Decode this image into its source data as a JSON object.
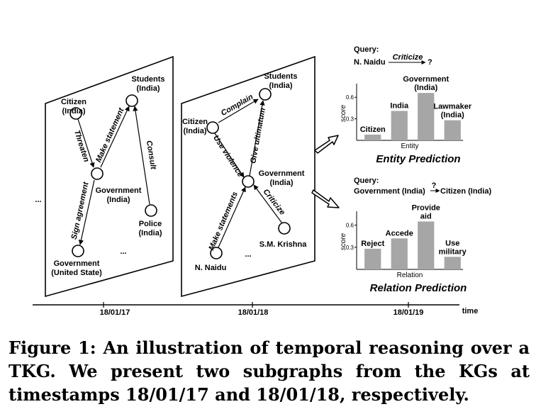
{
  "figure": {
    "left_graph": {
      "nodes": {
        "students": "Students\n(India)",
        "citizen": "Citizen\n(India)",
        "government": "Government\n(India)",
        "police": "Police\n(India)",
        "us_government": "Government\n(United State)"
      },
      "edges": {
        "threaten": "Threaten",
        "make_statement": "Make statement",
        "consult": "Consult",
        "sign_agreement": "Sign agreement"
      }
    },
    "right_graph": {
      "nodes": {
        "students": "Students\n(India)",
        "citizen": "Citizen\n(India)",
        "government": "Government\n(India)",
        "sm_krishna": "S.M. Krishna",
        "n_naidu": "N. Naidu"
      },
      "edges": {
        "complain": "Complain",
        "use_violence": "Use violence",
        "give_ultimatum": "Give ultimatum",
        "criticize": "Criticize",
        "make_statements": "Make statements"
      }
    },
    "ellipsis": "...",
    "timeline": {
      "dates": [
        "18/01/17",
        "18/01/18",
        "18/01/19"
      ],
      "time_label": "time"
    },
    "entity_query": {
      "label": "Query:",
      "subject": "N. Naidu",
      "relation": "Criticize",
      "object": "?"
    },
    "relation_query": {
      "label": "Query:",
      "subject": "Government (India)",
      "relation": "?",
      "object": "Citizen (India)"
    }
  },
  "chart_data": [
    {
      "type": "bar",
      "title": "Entity Prediction",
      "xlabel": "Entity",
      "ylabel": "score",
      "yticks": [
        0.3,
        0.6
      ],
      "ylim": [
        0,
        0.75
      ],
      "categories": [
        "Citizen",
        "India",
        "Government\n(India)",
        "Lawmaker\n(India)"
      ],
      "values": [
        0.08,
        0.41,
        0.66,
        0.28
      ]
    },
    {
      "type": "bar",
      "title": "Relation Prediction",
      "xlabel": "Relation",
      "ylabel": "score",
      "yticks": [
        0.3,
        0.6
      ],
      "ylim": [
        0,
        0.75
      ],
      "categories": [
        "Reject",
        "Accede",
        "Provide\naid",
        "Use\nmilitary"
      ],
      "values": [
        0.28,
        0.42,
        0.65,
        0.17
      ]
    }
  ],
  "caption": "Figure 1: An illustration of temporal reasoning over a TKG. We present two subgraphs from the KGs at timestamps 18/01/17 and 18/01/18, respectively."
}
